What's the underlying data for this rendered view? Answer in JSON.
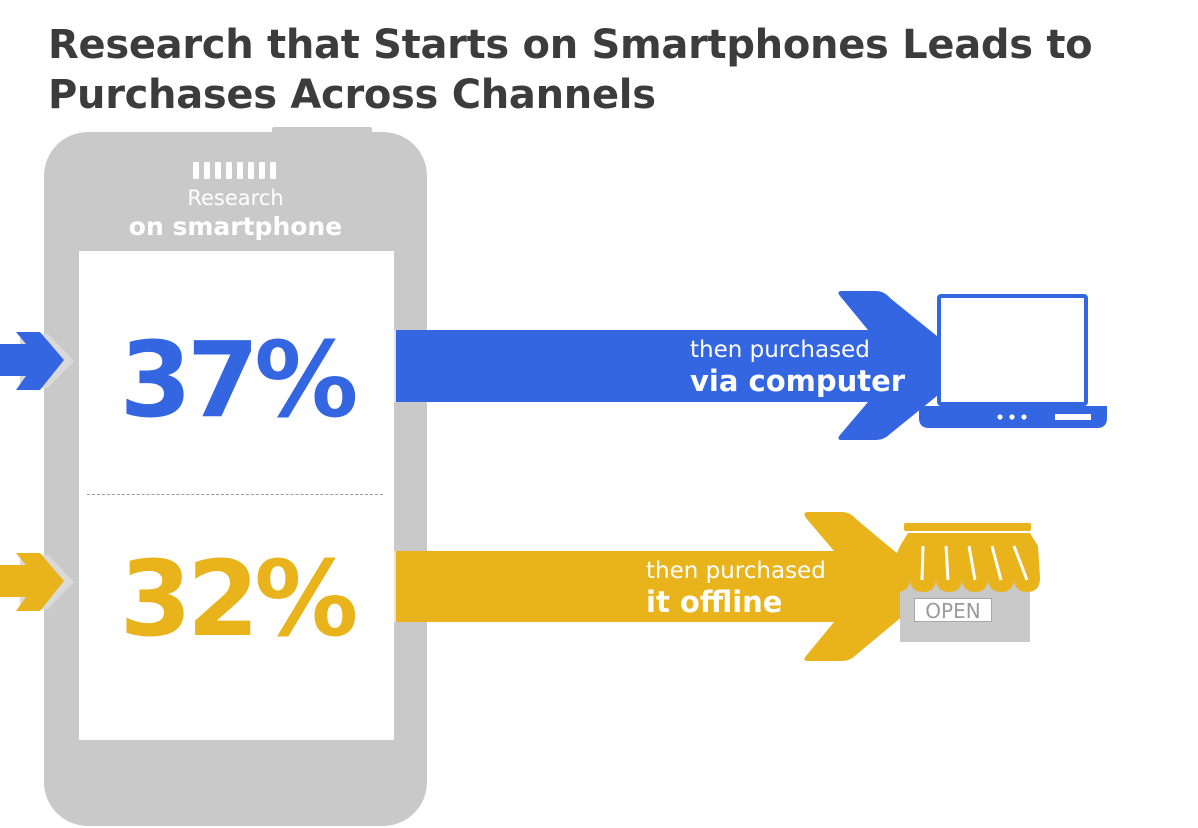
{
  "title": "Research that Starts on Smartphones Leads to Purchases Across Channels",
  "phone": {
    "label_line1": "Research",
    "label_line2": "on smartphone"
  },
  "channels": [
    {
      "percent": "37%",
      "text_line1": "then purchased",
      "text_line2": "via computer",
      "color": "#3366e0",
      "icon": "laptop-icon"
    },
    {
      "percent": "32%",
      "text_line1": "then purchased",
      "text_line2": "it offline",
      "color": "#e9b31c",
      "icon": "storefront-icon"
    }
  ],
  "store_sign": "OPEN",
  "colors": {
    "blue": "#3366e0",
    "yellow": "#e9b31c",
    "phone_gray": "#c9c9c9",
    "title": "#3c3c3c"
  }
}
